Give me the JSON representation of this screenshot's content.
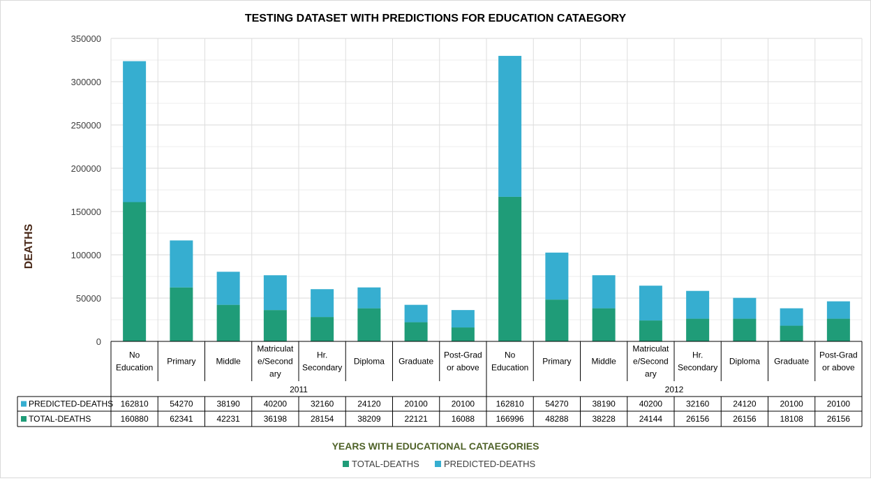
{
  "chart_data": {
    "type": "bar",
    "stacked": true,
    "title": "TESTING DATASET WITH PREDICTIONS FOR EDUCATION CATAEGORY",
    "ylabel": "DEATHS",
    "xlabel": "YEARS WITH  EDUCATIONAL CATAEGORIES",
    "ylim": [
      0,
      350000
    ],
    "yticks": [
      "0",
      "50000",
      "100000",
      "150000",
      "200000",
      "250000",
      "300000",
      "350000"
    ],
    "grid": true,
    "legend_position": "bottom",
    "groups": [
      {
        "name": "2011",
        "categories": [
          [
            "No",
            "Education"
          ],
          [
            "Primary"
          ],
          [
            "Middle"
          ],
          [
            "Matriculat",
            "e/Second",
            "ary"
          ],
          [
            "Hr.",
            "Secondary"
          ],
          [
            "Diploma"
          ],
          [
            "Graduate"
          ],
          [
            "Post-Grad",
            "or above"
          ]
        ]
      },
      {
        "name": "2012",
        "categories": [
          [
            "No",
            "Education"
          ],
          [
            "Primary"
          ],
          [
            "Middle"
          ],
          [
            "Matriculat",
            "e/Second",
            "ary"
          ],
          [
            "Hr.",
            "Secondary"
          ],
          [
            "Diploma"
          ],
          [
            "Graduate"
          ],
          [
            "Post-Grad",
            "or above"
          ]
        ]
      }
    ],
    "series": [
      {
        "name": "TOTAL-DEATHS",
        "color": "#1f9c78",
        "values": [
          160880,
          62341,
          42231,
          36198,
          28154,
          38209,
          22121,
          16088,
          166996,
          48288,
          38228,
          24144,
          26156,
          26156,
          18108,
          26156
        ]
      },
      {
        "name": "PREDICTED-DEATHS",
        "color": "#36aed0",
        "values": [
          162810,
          54270,
          38190,
          40200,
          32160,
          24120,
          20100,
          20100,
          162810,
          54270,
          38190,
          40200,
          32160,
          24120,
          20100,
          20100
        ]
      }
    ],
    "table_rows": [
      "PREDICTED-DEATHS",
      "TOTAL-DEATHS"
    ]
  }
}
